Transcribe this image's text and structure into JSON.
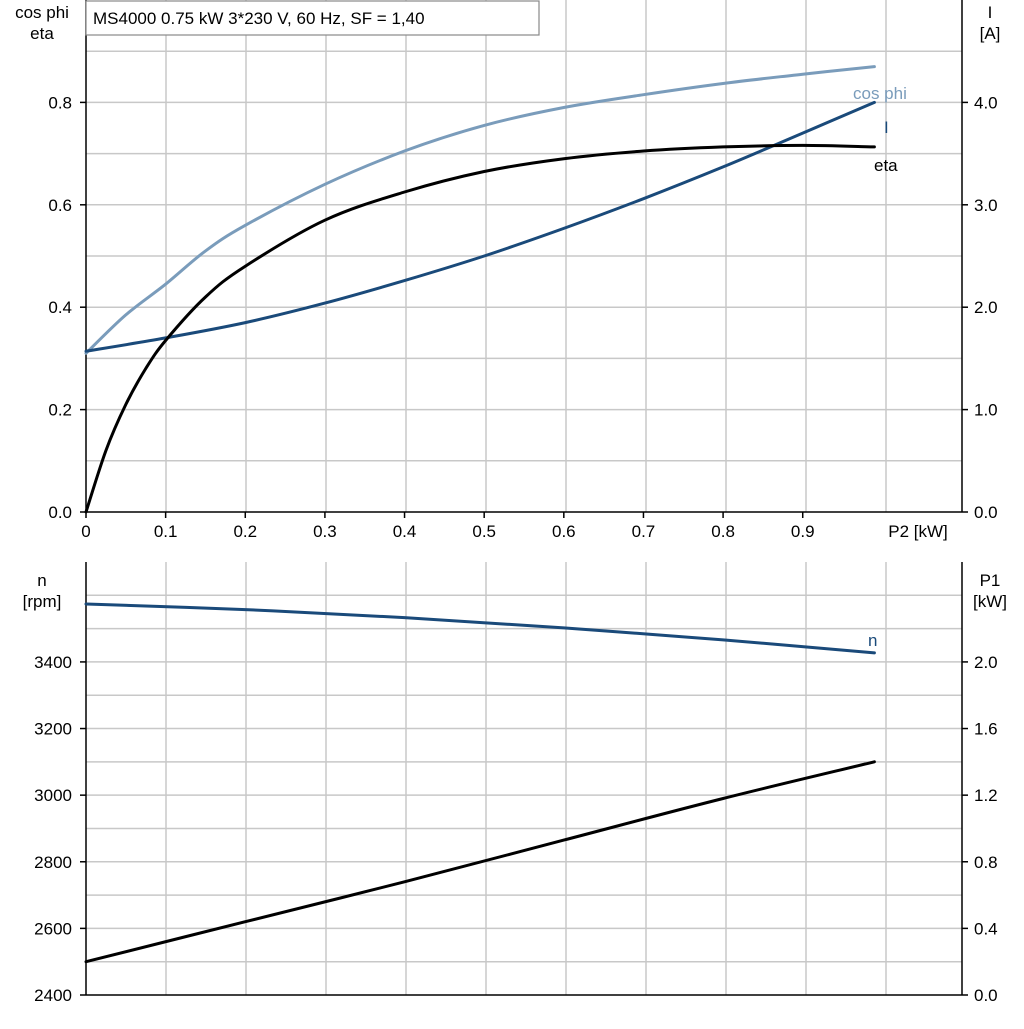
{
  "chart_data": [
    {
      "type": "line",
      "title": "MS4000   0.75 kW   3*230 V, 60 Hz, SF = 1,40",
      "xlabel": "P2 [kW]",
      "xlim": [
        0,
        1.1
      ],
      "xticks": [
        "0",
        "0.1",
        "0.2",
        "0.3",
        "0.4",
        "0.5",
        "0.6",
        "0.7",
        "0.8",
        "0.9"
      ],
      "ylabel_left": [
        "cos phi",
        "eta"
      ],
      "ylim_left": [
        0,
        1.0
      ],
      "yticks_left": [
        "0.0",
        "0.2",
        "0.4",
        "0.6",
        "0.8"
      ],
      "ylabel_right": [
        "I",
        "[A]"
      ],
      "ylim_right": [
        0,
        5.0
      ],
      "yticks_right": [
        "0.0",
        "1.0",
        "2.0",
        "3.0",
        "4.0"
      ],
      "grid": true,
      "series": [
        {
          "name": "cos phi",
          "axis": "left",
          "color": "#7a9cbb",
          "x": [
            0,
            0.05,
            0.1,
            0.15,
            0.2,
            0.3,
            0.4,
            0.5,
            0.6,
            0.7,
            0.8,
            0.9,
            0.99
          ],
          "y": [
            0.31,
            0.385,
            0.445,
            0.51,
            0.56,
            0.64,
            0.705,
            0.755,
            0.79,
            0.815,
            0.837,
            0.855,
            0.87
          ]
        },
        {
          "name": "I",
          "axis": "right",
          "color": "#1a4a7a",
          "x": [
            0,
            0.1,
            0.2,
            0.3,
            0.4,
            0.5,
            0.6,
            0.7,
            0.8,
            0.9,
            0.99
          ],
          "y": [
            1.57,
            1.7,
            1.85,
            2.04,
            2.26,
            2.5,
            2.77,
            3.06,
            3.37,
            3.7,
            4.0
          ]
        },
        {
          "name": "eta",
          "axis": "left",
          "color": "#000000",
          "x": [
            0,
            0.025,
            0.05,
            0.075,
            0.1,
            0.15,
            0.2,
            0.3,
            0.4,
            0.5,
            0.6,
            0.7,
            0.8,
            0.9,
            0.99
          ],
          "y": [
            0.0,
            0.12,
            0.21,
            0.28,
            0.335,
            0.42,
            0.48,
            0.57,
            0.625,
            0.665,
            0.69,
            0.705,
            0.713,
            0.716,
            0.713
          ]
        }
      ]
    },
    {
      "type": "line",
      "xlim": [
        0,
        1.1
      ],
      "ylabel_left": [
        "n",
        "[rpm]"
      ],
      "ylim_left": [
        2400,
        3700
      ],
      "yticks_left": [
        "2400",
        "2600",
        "2800",
        "3000",
        "3200",
        "3400"
      ],
      "ylabel_right": [
        "P1",
        "[kW]"
      ],
      "ylim_right": [
        0,
        2.6
      ],
      "yticks_right": [
        "0.0",
        "0.4",
        "0.8",
        "1.2",
        "1.6",
        "2.0"
      ],
      "grid": true,
      "series": [
        {
          "name": "n",
          "axis": "left",
          "color": "#1a4a7a",
          "x": [
            0,
            0.2,
            0.4,
            0.6,
            0.8,
            0.99
          ],
          "y": [
            3574,
            3557,
            3533,
            3502,
            3466,
            3427
          ]
        },
        {
          "name": "",
          "axis": "right",
          "color": "#000000",
          "x": [
            0,
            0.2,
            0.4,
            0.6,
            0.8,
            0.99
          ],
          "y": [
            0.2,
            0.44,
            0.68,
            0.93,
            1.18,
            1.4
          ]
        }
      ]
    }
  ]
}
